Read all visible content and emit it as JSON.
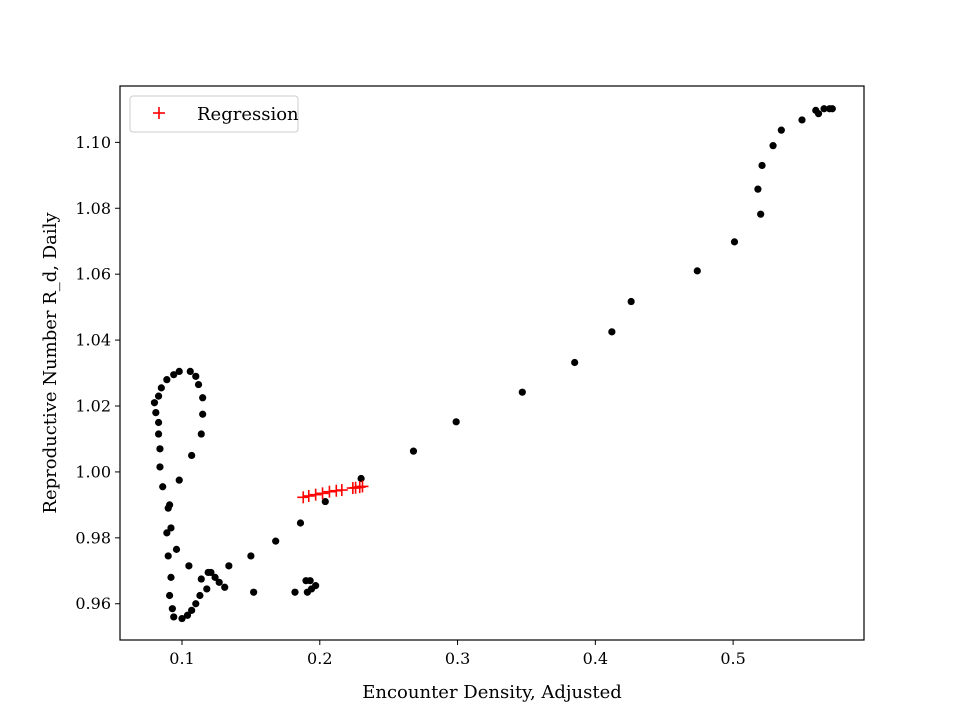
{
  "chart_data": {
    "type": "scatter",
    "title": "",
    "xlabel": "Encounter Density, Adjusted",
    "ylabel": "Reproductive Number R_d, Daily",
    "xlim": [
      0.055,
      0.595
    ],
    "ylim": [
      0.949,
      1.1171
    ],
    "xticks": [
      0.1,
      0.2,
      0.3,
      0.4,
      0.5
    ],
    "xtick_labels": [
      "0.1",
      "0.2",
      "0.3",
      "0.4",
      "0.5"
    ],
    "yticks": [
      0.96,
      0.98,
      1.0,
      1.02,
      1.04,
      1.06,
      1.08,
      1.1
    ],
    "ytick_labels": [
      "0.96",
      "0.98",
      "1.00",
      "1.02",
      "1.04",
      "1.06",
      "1.08",
      "1.10"
    ],
    "grid": false,
    "legend_position": "top-left",
    "series": [
      {
        "marker": "dot",
        "color": "#000000",
        "points": [
          [
            0.08,
            1.021
          ],
          [
            0.081,
            1.018
          ],
          [
            0.083,
            1.015
          ],
          [
            0.083,
            1.023
          ],
          [
            0.083,
            1.0115
          ],
          [
            0.084,
            1.007
          ],
          [
            0.085,
            1.0255
          ],
          [
            0.084,
            1.0015
          ],
          [
            0.086,
            0.9955
          ],
          [
            0.089,
            1.028
          ],
          [
            0.09,
            0.989
          ],
          [
            0.091,
            0.99
          ],
          [
            0.092,
            0.983
          ],
          [
            0.089,
            0.9815
          ],
          [
            0.09,
            0.9745
          ],
          [
            0.092,
            0.968
          ],
          [
            0.091,
            0.9625
          ],
          [
            0.093,
            0.9585
          ],
          [
            0.094,
            0.956
          ],
          [
            0.094,
            1.0295
          ],
          [
            0.096,
            0.9765
          ],
          [
            0.098,
            1.0305
          ],
          [
            0.098,
            0.9975
          ],
          [
            0.1,
            0.9555
          ],
          [
            0.104,
            0.9565
          ],
          [
            0.106,
            1.0305
          ],
          [
            0.105,
            0.9715
          ],
          [
            0.107,
            1.005
          ],
          [
            0.107,
            0.958
          ],
          [
            0.11,
            1.029
          ],
          [
            0.11,
            0.96
          ],
          [
            0.112,
            1.0265
          ],
          [
            0.113,
            0.9625
          ],
          [
            0.114,
            1.0115
          ],
          [
            0.114,
            0.9675
          ],
          [
            0.115,
            1.0225
          ],
          [
            0.115,
            1.0175
          ],
          [
            0.118,
            0.9645
          ],
          [
            0.119,
            0.9695
          ],
          [
            0.121,
            0.9695
          ],
          [
            0.124,
            0.968
          ],
          [
            0.127,
            0.9665
          ],
          [
            0.131,
            0.965
          ],
          [
            0.134,
            0.9715
          ],
          [
            0.15,
            0.9745
          ],
          [
            0.152,
            0.9635
          ],
          [
            0.168,
            0.979
          ],
          [
            0.182,
            0.9635
          ],
          [
            0.186,
            0.9845
          ],
          [
            0.19,
            0.967
          ],
          [
            0.191,
            0.9635
          ],
          [
            0.193,
            0.967
          ],
          [
            0.194,
            0.9645
          ],
          [
            0.197,
            0.9655
          ],
          [
            0.204,
            0.991
          ],
          [
            0.23,
            0.998
          ],
          [
            0.268,
            1.0063
          ],
          [
            0.299,
            1.0152
          ],
          [
            0.347,
            1.0242
          ],
          [
            0.385,
            1.0332
          ],
          [
            0.412,
            1.0425
          ],
          [
            0.426,
            1.0517
          ],
          [
            0.474,
            1.061
          ],
          [
            0.501,
            1.0698
          ],
          [
            0.518,
            1.0858
          ],
          [
            0.52,
            1.0782
          ],
          [
            0.521,
            1.093
          ],
          [
            0.529,
            1.099
          ],
          [
            0.535,
            1.1037
          ],
          [
            0.55,
            1.1068
          ],
          [
            0.56,
            1.1097
          ],
          [
            0.562,
            1.1087
          ],
          [
            0.566,
            1.1102
          ],
          [
            0.57,
            1.1102
          ],
          [
            0.572,
            1.1102
          ]
        ]
      },
      {
        "name": "Regression",
        "marker": "plus",
        "color": "#ff0000",
        "points": [
          [
            0.188,
            0.9923
          ],
          [
            0.192,
            0.9927
          ],
          [
            0.197,
            0.9931
          ],
          [
            0.202,
            0.9935
          ],
          [
            0.207,
            0.994
          ],
          [
            0.212,
            0.9943
          ],
          [
            0.216,
            0.9945
          ],
          [
            0.224,
            0.9951
          ],
          [
            0.226,
            0.9952
          ],
          [
            0.229,
            0.9954
          ],
          [
            0.231,
            0.9956
          ]
        ]
      }
    ]
  }
}
